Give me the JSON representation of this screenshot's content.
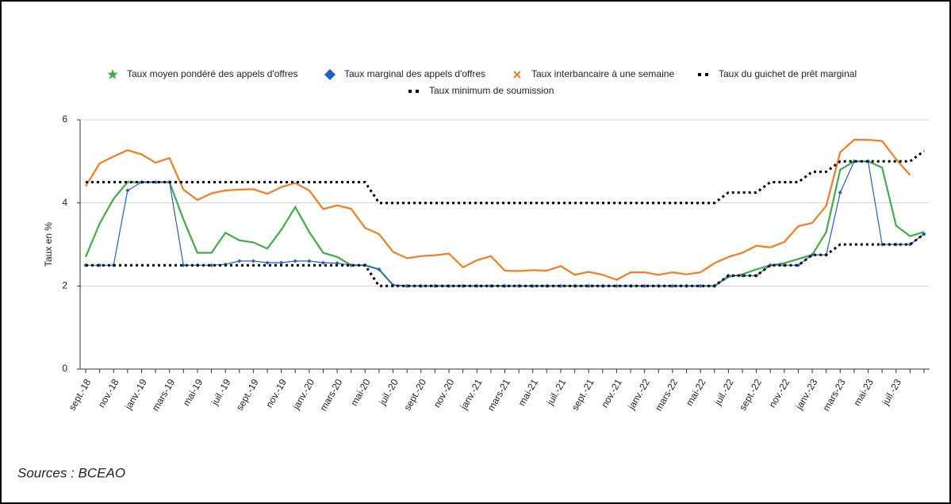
{
  "chart_data": {
    "type": "line",
    "categories": [
      "sept.-18",
      null,
      "nov.-18",
      null,
      "janv.-19",
      null,
      "mars-19",
      null,
      "mai-19",
      null,
      "juil.-19",
      null,
      "sept.-19",
      null,
      "nov.-19",
      null,
      "janv.-20",
      null,
      "mars-20",
      null,
      "mai-20",
      null,
      "juil.-20",
      null,
      "sept.-20",
      null,
      "nov.-20",
      null,
      "janv.-21",
      null,
      "mars-21",
      null,
      "mai-21",
      null,
      "juil.-21",
      null,
      "sept.-21",
      null,
      "nov.-21",
      null,
      "janv.-22",
      null,
      "mars-22",
      null,
      "mai-22",
      null,
      "juil.-22",
      null,
      "sept.-22",
      null,
      "nov.-22",
      null,
      "janv.-23",
      null,
      "mars-23",
      null,
      "mai-23",
      null,
      "juil.-23",
      null,
      null
    ],
    "ylabel": "Taux en %",
    "ylim": [
      0,
      6
    ],
    "yticks": [
      0,
      2,
      4,
      6
    ],
    "grid": true,
    "source": "Sources : BCEAO",
    "series": [
      {
        "name": "Taux moyen pondéré des appels d'offres",
        "color": "#3fae49",
        "marker": "star",
        "style": "solid",
        "values": [
          2.7,
          3.5,
          4.1,
          4.5,
          4.5,
          4.5,
          4.5,
          3.6,
          2.8,
          2.8,
          3.28,
          3.1,
          3.05,
          2.9,
          3.35,
          3.9,
          3.3,
          2.8,
          2.7,
          2.5,
          2.5,
          2.4,
          2.02,
          2,
          2,
          2,
          2,
          2,
          2,
          2,
          2,
          2,
          2,
          2,
          2,
          2,
          2,
          2,
          2,
          2,
          2,
          2,
          2,
          2,
          2,
          2,
          2.22,
          2.28,
          2.4,
          2.5,
          2.55,
          2.65,
          2.75,
          3.3,
          4.8,
          5,
          5,
          4.85,
          3.45,
          3.2,
          3.3
        ]
      },
      {
        "name": "Taux marginal des appels d'offres",
        "color": "#1f5fcc",
        "marker": "diamond",
        "style": "thin",
        "values": [
          2.5,
          2.5,
          2.5,
          4.3,
          4.5,
          4.5,
          4.5,
          2.5,
          2.5,
          2.5,
          2.52,
          2.6,
          2.6,
          2.56,
          2.56,
          2.6,
          2.6,
          2.56,
          2.55,
          2.5,
          2.5,
          2.4,
          2.02,
          2,
          2,
          2,
          2,
          2,
          2,
          2,
          2,
          2,
          2,
          2,
          2,
          2,
          2,
          2,
          2,
          2,
          2,
          2,
          2,
          2,
          2,
          2,
          2.25,
          2.25,
          2.25,
          2.5,
          2.5,
          2.5,
          2.75,
          2.75,
          4.25,
          5,
          5,
          3,
          3,
          3,
          3.25
        ]
      },
      {
        "name": "Taux interbancaire à une semaine",
        "color": "#f57c20",
        "marker": "x",
        "style": "solid",
        "values": [
          4.4,
          4.95,
          5.12,
          5.27,
          5.17,
          4.97,
          5.08,
          4.32,
          4.07,
          4.23,
          4.3,
          4.32,
          4.33,
          4.22,
          4.38,
          4.48,
          4.3,
          3.85,
          3.94,
          3.86,
          3.4,
          3.25,
          2.82,
          2.67,
          2.72,
          2.74,
          2.78,
          2.45,
          2.62,
          2.72,
          2.37,
          2.36,
          2.38,
          2.37,
          2.48,
          2.27,
          2.34,
          2.27,
          2.15,
          2.33,
          2.33,
          2.27,
          2.33,
          2.28,
          2.33,
          2.55,
          2.7,
          2.8,
          2.97,
          2.93,
          3.06,
          3.44,
          3.52,
          3.93,
          5.22,
          5.52,
          5.52,
          5.49,
          5.05,
          4.67,
          null
        ]
      },
      {
        "name": "Taux du guichet de prêt marginal",
        "color": "#000000",
        "marker": "dots",
        "style": "dotted",
        "values": [
          4.5,
          4.5,
          4.5,
          4.5,
          4.5,
          4.5,
          4.5,
          4.5,
          4.5,
          4.5,
          4.5,
          4.5,
          4.5,
          4.5,
          4.5,
          4.5,
          4.5,
          4.5,
          4.5,
          4.5,
          4.5,
          4,
          4,
          4,
          4,
          4,
          4,
          4,
          4,
          4,
          4,
          4,
          4,
          4,
          4,
          4,
          4,
          4,
          4,
          4,
          4,
          4,
          4,
          4,
          4,
          4,
          4.25,
          4.25,
          4.25,
          4.5,
          4.5,
          4.5,
          4.75,
          4.75,
          5,
          5,
          5,
          5,
          5,
          5,
          5.25
        ]
      },
      {
        "name": "Taux minimum de soumission",
        "color": "#000000",
        "marker": "dots",
        "style": "dotted",
        "values": [
          2.5,
          2.5,
          2.5,
          2.5,
          2.5,
          2.5,
          2.5,
          2.5,
          2.5,
          2.5,
          2.5,
          2.5,
          2.5,
          2.5,
          2.5,
          2.5,
          2.5,
          2.5,
          2.5,
          2.5,
          2.5,
          2,
          2,
          2,
          2,
          2,
          2,
          2,
          2,
          2,
          2,
          2,
          2,
          2,
          2,
          2,
          2,
          2,
          2,
          2,
          2,
          2,
          2,
          2,
          2,
          2,
          2.25,
          2.25,
          2.25,
          2.5,
          2.5,
          2.5,
          2.75,
          2.75,
          3,
          3,
          3,
          3,
          3,
          3,
          3.25
        ]
      }
    ]
  }
}
